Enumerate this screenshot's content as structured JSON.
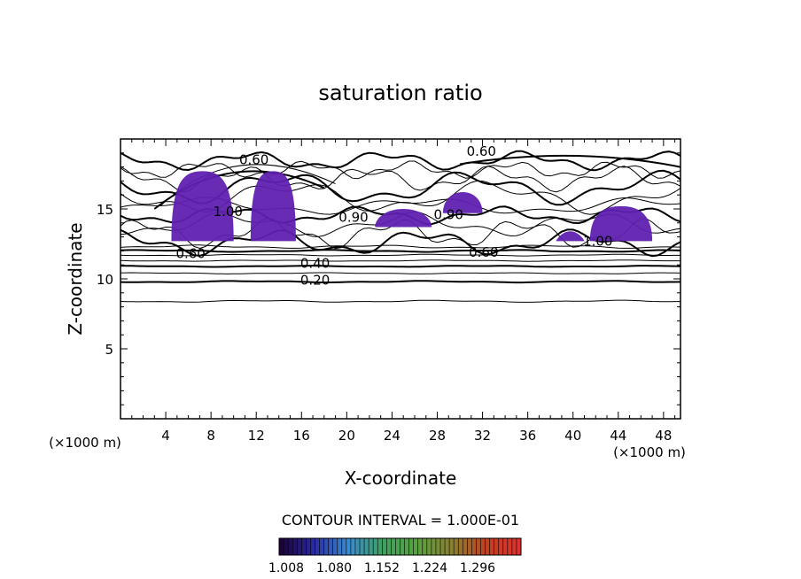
{
  "chart_data": {
    "type": "contour",
    "title": "saturation ratio",
    "xlabel": "X-coordinate",
    "ylabel": "Z-coordinate",
    "x_unit": "(×1000 m)",
    "z_unit": "(×1000 m)",
    "xlim": [
      0,
      49.5
    ],
    "ylim": [
      0,
      20
    ],
    "x_ticks": [
      4,
      8,
      12,
      16,
      20,
      24,
      28,
      32,
      36,
      40,
      44,
      48
    ],
    "y_ticks": [
      5,
      10,
      15
    ],
    "contour_interval_text": "CONTOUR INTERVAL = 1.000E-01",
    "contour_labels": [
      {
        "text": "0.60",
        "x": 11.8,
        "z": 18.5
      },
      {
        "text": "0.60",
        "x": 31.9,
        "z": 19.1
      },
      {
        "text": "1.00",
        "x": 9.5,
        "z": 14.8
      },
      {
        "text": "0.60",
        "x": 6.2,
        "z": 11.8
      },
      {
        "text": "0.40",
        "x": 17.2,
        "z": 11.1
      },
      {
        "text": "0.20",
        "x": 17.2,
        "z": 9.9
      },
      {
        "text": "0.60",
        "x": 32.1,
        "z": 11.9
      },
      {
        "text": "1.00",
        "x": 42.2,
        "z": 12.7
      },
      {
        "text": "0.90",
        "x": 20.6,
        "z": 14.4
      },
      {
        "text": "0.90",
        "x": 29.0,
        "z": 14.6
      }
    ],
    "supersaturated_regions_approx": [
      {
        "x": [
          4.5,
          10.0
        ],
        "z": [
          12.7,
          17.7
        ]
      },
      {
        "x": [
          11.5,
          15.5
        ],
        "z": [
          12.7,
          17.7
        ]
      },
      {
        "x": [
          22.5,
          27.5
        ],
        "z": [
          13.7,
          15.0
        ]
      },
      {
        "x": [
          28.5,
          32.0
        ],
        "z": [
          14.7,
          16.2
        ]
      },
      {
        "x": [
          38.5,
          41.0
        ],
        "z": [
          12.7,
          13.4
        ]
      },
      {
        "x": [
          41.5,
          47.0
        ],
        "z": [
          12.7,
          15.2
        ]
      }
    ],
    "colorbar": {
      "tick_labels": [
        "1.008",
        "1.080",
        "1.152",
        "1.224",
        "1.296"
      ],
      "colors": [
        "#1a0033",
        "#2a2aa0",
        "#3a8ad0",
        "#3fa060",
        "#5aa040",
        "#8a8030",
        "#c04020",
        "#e03030"
      ]
    },
    "fill_color": "#6020b0"
  }
}
